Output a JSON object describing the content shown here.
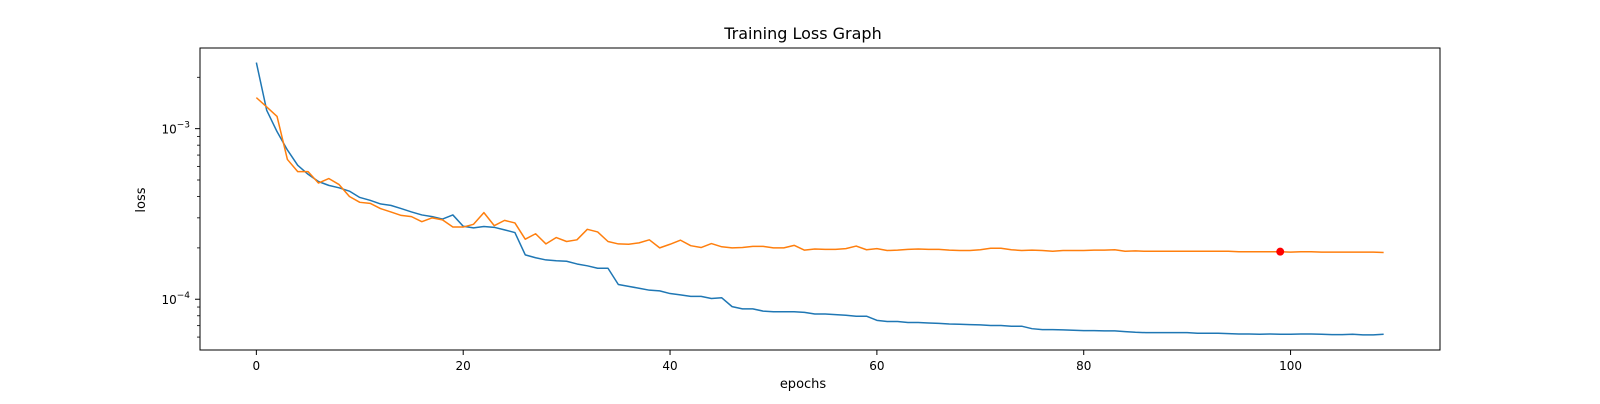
{
  "chart_data": {
    "type": "line",
    "title": "Training Loss Graph",
    "xlabel": "epochs",
    "ylabel": "loss",
    "yscale": "log",
    "xlim": [
      -5.45,
      114.45
    ],
    "ylim": [
      5.04e-05,
      0.00297
    ],
    "xticks": [
      {
        "value": 0,
        "label": "0"
      },
      {
        "value": 20,
        "label": "20"
      },
      {
        "value": 40,
        "label": "40"
      },
      {
        "value": 60,
        "label": "60"
      },
      {
        "value": 80,
        "label": "80"
      },
      {
        "value": 100,
        "label": "100"
      }
    ],
    "yticks": [
      {
        "value": 0.001,
        "base": "10",
        "exp": "−3"
      },
      {
        "value": 0.0001,
        "base": "10",
        "exp": "−4"
      }
    ],
    "grid": false,
    "legend": "none",
    "series": [
      {
        "color": "#1f77b4",
        "values": [
          0.00244,
          0.00128,
          0.00096,
          0.00075,
          0.00061,
          0.00054,
          0.00049,
          0.000465,
          0.00045,
          0.00043,
          0.000395,
          0.00038,
          0.000362,
          0.000355,
          0.00034,
          0.000325,
          0.000312,
          0.000305,
          0.000295,
          0.000312,
          0.000268,
          0.000262,
          0.000267,
          0.000264,
          0.000255,
          0.000246,
          0.000182,
          0.000175,
          0.00017,
          0.000168,
          0.000167,
          0.000161,
          0.000157,
          0.000152,
          0.000152,
          0.000122,
          0.000119,
          0.000116,
          0.000113,
          0.000112,
          0.000108,
          0.000106,
          0.000104,
          0.000104,
          0.000101,
          0.000102,
          9.05e-05,
          8.78e-05,
          8.78e-05,
          8.52e-05,
          8.44e-05,
          8.44e-05,
          8.44e-05,
          8.38e-05,
          8.19e-05,
          8.19e-05,
          8.13e-05,
          8.06e-05,
          7.95e-05,
          7.95e-05,
          7.52e-05,
          7.4e-05,
          7.4e-05,
          7.3e-05,
          7.3e-05,
          7.25e-05,
          7.22e-05,
          7.16e-05,
          7.13e-05,
          7.1e-05,
          7.07e-05,
          7.01e-05,
          7.01e-05,
          6.95e-05,
          6.95e-05,
          6.72e-05,
          6.64e-05,
          6.64e-05,
          6.61e-05,
          6.58e-05,
          6.55e-05,
          6.55e-05,
          6.52e-05,
          6.52e-05,
          6.46e-05,
          6.4e-05,
          6.37e-05,
          6.37e-05,
          6.37e-05,
          6.37e-05,
          6.37e-05,
          6.32e-05,
          6.32e-05,
          6.32e-05,
          6.29e-05,
          6.26e-05,
          6.26e-05,
          6.23e-05,
          6.26e-05,
          6.23e-05,
          6.23e-05,
          6.26e-05,
          6.26e-05,
          6.23e-05,
          6.2e-05,
          6.2e-05,
          6.23e-05,
          6.18e-05,
          6.18e-05,
          6.23e-05
        ]
      },
      {
        "color": "#ff7f0e",
        "values": [
          0.00152,
          0.00134,
          0.00118,
          0.00066,
          0.00056,
          0.00056,
          0.00048,
          0.00051,
          0.00047,
          0.0004,
          0.00037,
          0.000365,
          0.00034,
          0.000325,
          0.00031,
          0.000305,
          0.000285,
          0.0003,
          0.000292,
          0.000265,
          0.000265,
          0.000275,
          0.000322,
          0.00027,
          0.00029,
          0.00028,
          0.000225,
          0.000242,
          0.000211,
          0.00023,
          0.000218,
          0.000223,
          0.000257,
          0.000248,
          0.000218,
          0.000211,
          0.00021,
          0.000214,
          0.000223,
          0.0002,
          0.00021,
          0.000222,
          0.000206,
          0.000201,
          0.000212,
          0.000203,
          0.0002,
          0.000201,
          0.000204,
          0.000204,
          0.0002,
          0.0002,
          0.000207,
          0.000194,
          0.000197,
          0.000196,
          0.000196,
          0.000198,
          0.000205,
          0.000195,
          0.000198,
          0.000193,
          0.000194,
          0.000196,
          0.000197,
          0.000196,
          0.000196,
          0.000194,
          0.000193,
          0.000193,
          0.000195,
          0.000199,
          0.000199,
          0.000195,
          0.000193,
          0.000194,
          0.000193,
          0.000191,
          0.000193,
          0.000193,
          0.000193,
          0.000194,
          0.000194,
          0.000195,
          0.000191,
          0.000192,
          0.000191,
          0.000191,
          0.000191,
          0.000191,
          0.000191,
          0.000191,
          0.000191,
          0.000191,
          0.000191,
          0.00019,
          0.00019,
          0.00019,
          0.00019,
          0.00019,
          0.000189,
          0.00019,
          0.00019,
          0.000189,
          0.000189,
          0.000189,
          0.000189,
          0.000189,
          0.000189,
          0.000188
        ]
      }
    ],
    "marker": {
      "x": 99,
      "y": 0.00019,
      "color": "#ff0000"
    }
  }
}
